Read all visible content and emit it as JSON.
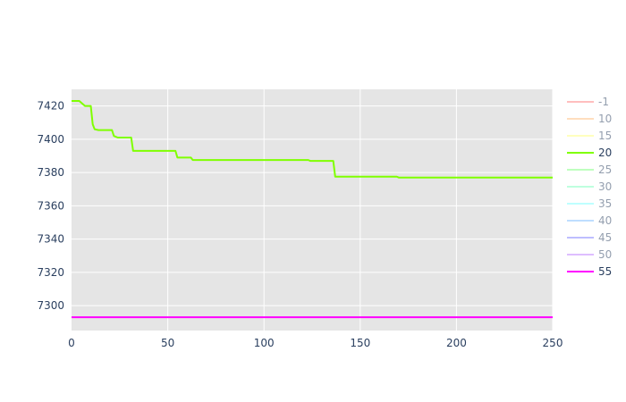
{
  "chart_data": {
    "type": "line",
    "title": "",
    "xlabel": "",
    "ylabel": "",
    "xlim": [
      0,
      250
    ],
    "ylim": [
      7285,
      7430
    ],
    "x_ticks": [
      0,
      50,
      100,
      150,
      200,
      250
    ],
    "y_ticks": [
      7300,
      7320,
      7340,
      7360,
      7380,
      7400,
      7420
    ],
    "grid": true,
    "background": "#e5e5e5",
    "legend_position": "right",
    "series": [
      {
        "name": "-1",
        "color": "#ff7f7f",
        "visible": false,
        "points": []
      },
      {
        "name": "10",
        "color": "#ffbf7f",
        "visible": false,
        "points": []
      },
      {
        "name": "15",
        "color": "#ffff7f",
        "visible": false,
        "points": []
      },
      {
        "name": "20",
        "color": "#7fff00",
        "visible": true,
        "points": [
          [
            0,
            7423
          ],
          [
            4,
            7423
          ],
          [
            6,
            7421
          ],
          [
            7,
            7420
          ],
          [
            10,
            7420
          ],
          [
            11,
            7409
          ],
          [
            12,
            7406
          ],
          [
            14,
            7405.5
          ],
          [
            21,
            7405.5
          ],
          [
            22,
            7402
          ],
          [
            24,
            7401
          ],
          [
            31,
            7401
          ],
          [
            32,
            7393
          ],
          [
            54,
            7393
          ],
          [
            55,
            7389
          ],
          [
            62,
            7389
          ],
          [
            63,
            7387.5
          ],
          [
            123,
            7387.5
          ],
          [
            124,
            7387
          ],
          [
            136,
            7387
          ],
          [
            137,
            7377.5
          ],
          [
            169,
            7377.5
          ],
          [
            170,
            7377
          ],
          [
            250,
            7377
          ]
        ]
      },
      {
        "name": "25",
        "color": "#7fff7f",
        "visible": false,
        "points": []
      },
      {
        "name": "30",
        "color": "#7fffbf",
        "visible": false,
        "points": []
      },
      {
        "name": "35",
        "color": "#7fffff",
        "visible": false,
        "points": []
      },
      {
        "name": "40",
        "color": "#7fbfff",
        "visible": false,
        "points": []
      },
      {
        "name": "45",
        "color": "#7f7fff",
        "visible": false,
        "points": []
      },
      {
        "name": "50",
        "color": "#bf7fff",
        "visible": false,
        "points": []
      },
      {
        "name": "55",
        "color": "#ff00ff",
        "visible": true,
        "points": [
          [
            0,
            7293
          ],
          [
            250,
            7293
          ]
        ]
      }
    ]
  }
}
